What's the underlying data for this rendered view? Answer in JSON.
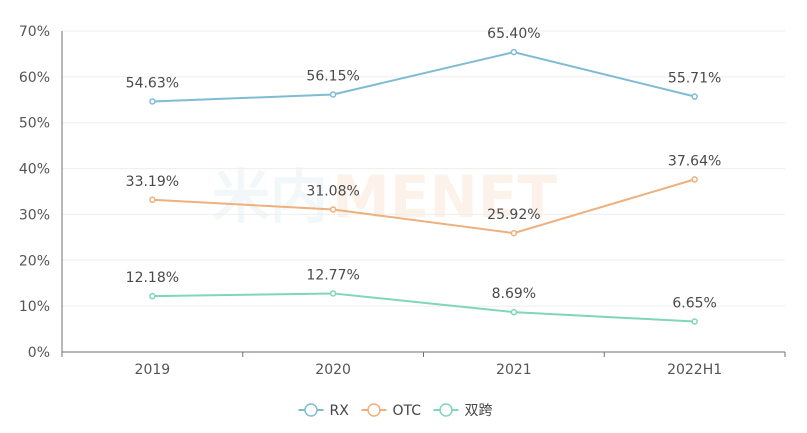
{
  "chart_data": {
    "type": "line",
    "categories": [
      "2019",
      "2020",
      "2021",
      "2022H1"
    ],
    "series": [
      {
        "name": "RX",
        "values": [
          54.63,
          56.15,
          65.4,
          55.71
        ],
        "labels": [
          "54.63%",
          "56.15%",
          "65.40%",
          "55.71%"
        ],
        "color": "#7fbcd2"
      },
      {
        "name": "OTC",
        "values": [
          33.19,
          31.08,
          25.92,
          37.64
        ],
        "labels": [
          "33.19%",
          "31.08%",
          "25.92%",
          "37.64%"
        ],
        "color": "#eeb07c"
      },
      {
        "name": "双跨",
        "values": [
          12.18,
          12.77,
          8.69,
          6.65
        ],
        "labels": [
          "12.18%",
          "12.77%",
          "8.69%",
          "6.65%"
        ],
        "color": "#7fd6b9"
      }
    ],
    "y_ticks": [
      "0%",
      "10%",
      "20%",
      "30%",
      "40%",
      "50%",
      "60%",
      "70%"
    ],
    "ylim": [
      0,
      70
    ],
    "grid": true,
    "legend_position": "bottom-center",
    "watermark": {
      "part1": "米内",
      "part2": "MENET"
    }
  }
}
